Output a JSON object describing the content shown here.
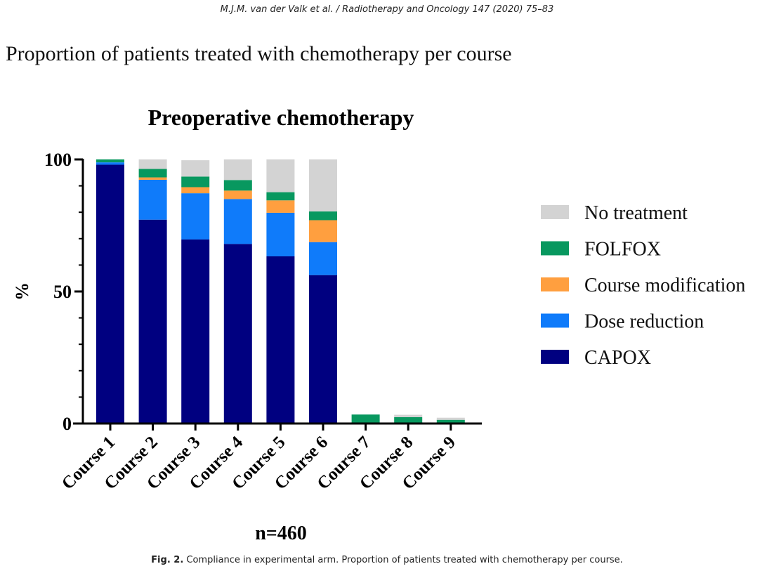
{
  "running_head": "M.J.M. van der Valk et al. / Radiotherapy and Oncology 147 (2020) 75–83",
  "slide_title": "Proportion of patients treated with chemotherapy per course",
  "caption": {
    "label": "Fig. 2.",
    "text": " Compliance in experimental arm. Proportion of patients treated with chemotherapy per course."
  },
  "chart_data": {
    "type": "bar",
    "stacked": true,
    "title": "Preoperative chemotherapy",
    "ylabel": "%",
    "xlabel": "n=460",
    "ylim": [
      0,
      100
    ],
    "yticks": [
      "0",
      "50",
      "100"
    ],
    "grid": false,
    "legend_position": "right",
    "categories": [
      "Course 1",
      "Course 2",
      "Course 3",
      "Course 4",
      "Course 5",
      "Course 6",
      "Course 7",
      "Course 8",
      "Course 9"
    ],
    "series": [
      {
        "name": "CAPOX",
        "color": "#000080",
        "values": [
          98.0,
          77.2,
          69.7,
          68.0,
          63.3,
          56.2,
          0,
          0,
          0
        ]
      },
      {
        "name": "Dose reduction",
        "color": "#0f7bfa",
        "values": [
          0.9,
          15.1,
          17.5,
          17.0,
          16.5,
          12.5,
          0,
          0,
          0
        ]
      },
      {
        "name": "Course modification",
        "color": "#ff9f3f",
        "values": [
          0,
          0.9,
          2.3,
          3.2,
          4.7,
          8.3,
          0,
          0,
          0
        ]
      },
      {
        "name": "FOLFOX",
        "color": "#08985f",
        "values": [
          1.1,
          3.2,
          4.0,
          4.0,
          3.1,
          3.3,
          3.4,
          2.4,
          1.4
        ]
      },
      {
        "name": "No treatment",
        "color": "#d3d3d3",
        "values": [
          0,
          3.6,
          6.2,
          7.8,
          12.4,
          19.7,
          0,
          0.9,
          0.8
        ]
      }
    ],
    "legend_order": [
      "No treatment",
      "FOLFOX",
      "Course modification",
      "Dose reduction",
      "CAPOX"
    ]
  }
}
